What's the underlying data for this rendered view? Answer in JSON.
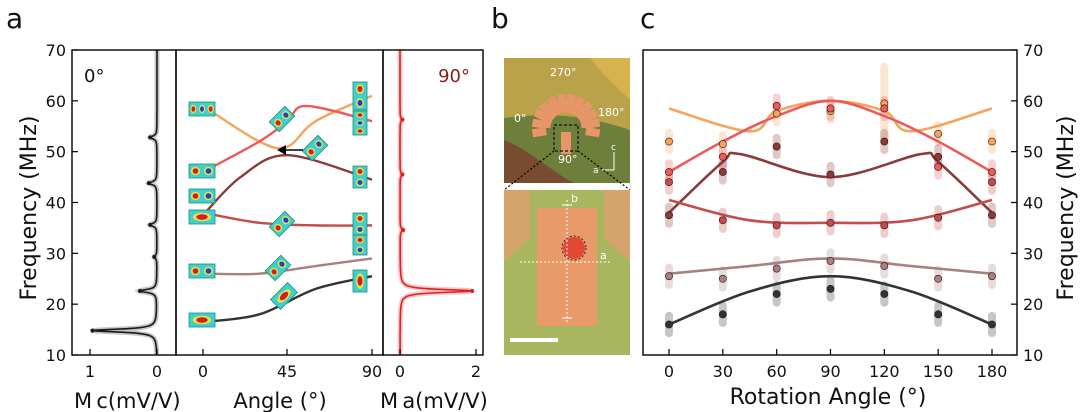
{
  "panel_labels": {
    "a": "a",
    "b": "b",
    "c": "c"
  },
  "panel_a": {
    "ylabel": "Frequency (MHz)",
    "yticks": [
      "10",
      "20",
      "30",
      "40",
      "50",
      "60",
      "70"
    ],
    "left": {
      "label": "0°",
      "xlabel": "M c(mV/V)",
      "xticks": [
        "1",
        "0"
      ],
      "color": "#1a1a1a",
      "peaks": [
        {
          "f": 14.8,
          "a": 0.95
        },
        {
          "f": 22.6,
          "a": 0.25
        },
        {
          "f": 29.3,
          "a": 0.04
        },
        {
          "f": 35.6,
          "a": 0.1
        },
        {
          "f": 43.8,
          "a": 0.12
        },
        {
          "f": 52.8,
          "a": 0.1
        }
      ]
    },
    "middle": {
      "xlabel": "Angle (°)",
      "xticks": [
        "0",
        "45",
        "90"
      ]
    },
    "right": {
      "label": "90°",
      "xlabel": "M a(mV/V)",
      "xticks": [
        "0",
        "2"
      ],
      "color": "#e02020",
      "peaks": [
        {
          "f": 22.6,
          "a": 1.9
        },
        {
          "f": 34.6,
          "a": 0.08
        },
        {
          "f": 45.5,
          "a": 0.06
        },
        {
          "f": 56.3,
          "a": 0.06
        }
      ]
    }
  },
  "panel_b": {
    "top_labels": [
      "270°",
      "180°",
      "0°",
      "90°"
    ],
    "axis_labels": {
      "c": "c",
      "a": "a"
    },
    "bottom_labels": {
      "b": "b",
      "a": "a"
    },
    "colors": {
      "gold": "#d2b15a",
      "olive": "#8a9a50",
      "orange": "#e8a070",
      "green": "#a8b860"
    }
  },
  "chart_data": [
    {
      "type": "line",
      "title": "",
      "xlabel": "Angle (°)",
      "ylabel": "Frequency (MHz)",
      "xlim": [
        -15,
        95
      ],
      "ylim": [
        10,
        70
      ],
      "x": [
        0,
        45,
        90
      ],
      "series": [
        {
          "color": "#f4a45c",
          "points": [
            [
              0,
              59
            ],
            [
              30,
              52
            ],
            [
              45,
              51
            ],
            [
              60,
              56
            ],
            [
              90,
              61
            ]
          ]
        },
        {
          "color": "#ee5a5a",
          "points": [
            [
              0,
              46
            ],
            [
              30,
              52
            ],
            [
              45,
              56
            ],
            [
              55,
              59
            ],
            [
              90,
              56
            ]
          ]
        },
        {
          "color": "#8b3a3a",
          "points": [
            [
              0,
              37.5
            ],
            [
              20,
              45
            ],
            [
              45,
              49.3
            ],
            [
              90,
              44.5
            ]
          ]
        },
        {
          "color": "#c44c4c",
          "points": [
            [
              0,
              38
            ],
            [
              30,
              36
            ],
            [
              60,
              35.5
            ],
            [
              90,
              35.5
            ]
          ]
        },
        {
          "color": "#a88080",
          "points": [
            [
              0,
              26
            ],
            [
              30,
              26
            ],
            [
              60,
              27.5
            ],
            [
              90,
              29
            ]
          ]
        },
        {
          "color": "#333333",
          "points": [
            [
              0,
              16.5
            ],
            [
              30,
              18
            ],
            [
              60,
              23
            ],
            [
              90,
              25.5
            ]
          ]
        }
      ]
    },
    {
      "type": "scatter",
      "title": "",
      "xlabel": "Rotation Angle (°)",
      "ylabel": "Frequency (MHz)",
      "xticks": [
        "0",
        "30",
        "60",
        "90",
        "120",
        "150",
        "180"
      ],
      "yticks": [
        "10",
        "20",
        "30",
        "40",
        "50",
        "60",
        "70"
      ],
      "xlim": [
        -15,
        195
      ],
      "ylim": [
        10,
        70
      ],
      "series": [
        {
          "color": "#f4a45c",
          "curve": [
            [
              0,
              58.5
            ],
            [
              45,
              54
            ],
            [
              60,
              58
            ],
            [
              90,
              60
            ],
            [
              120,
              58
            ],
            [
              135,
              54
            ],
            [
              180,
              58.5
            ]
          ],
          "points": [
            [
              0,
              52
            ],
            [
              30,
              51.5
            ],
            [
              60,
              57.5
            ],
            [
              90,
              58
            ],
            [
              120,
              59.5
            ],
            [
              150,
              53.5
            ],
            [
              180,
              52
            ]
          ]
        },
        {
          "color": "#ee5a5a",
          "curve": [
            [
              0,
              46
            ],
            [
              30,
              52
            ],
            [
              60,
              57
            ],
            [
              90,
              60
            ],
            [
              120,
              57
            ],
            [
              150,
              52
            ],
            [
              180,
              46
            ]
          ],
          "points": [
            [
              0,
              46
            ],
            [
              30,
              49
            ],
            [
              60,
              59
            ],
            [
              90,
              58.5
            ],
            [
              120,
              58.5
            ],
            [
              150,
              47
            ],
            [
              180,
              46
            ]
          ]
        },
        {
          "color": "#8b3a3a",
          "curve": [
            [
              0,
              38
            ],
            [
              30,
              48
            ],
            [
              40,
              49.5
            ],
            [
              90,
              45
            ],
            [
              140,
              49.5
            ],
            [
              150,
              48
            ],
            [
              180,
              38
            ]
          ],
          "points": [
            [
              0,
              37.5
            ],
            [
              30,
              46
            ],
            [
              60,
              51
            ],
            [
              90,
              45.5
            ],
            [
              120,
              52
            ],
            [
              150,
              49
            ],
            [
              180,
              37.5
            ]
          ]
        },
        {
          "color": "#c44c4c",
          "curve": [
            [
              0,
              40.5
            ],
            [
              45,
              36.5
            ],
            [
              90,
              36
            ],
            [
              135,
              36.5
            ],
            [
              180,
              40.5
            ]
          ],
          "points": [
            [
              0,
              44
            ],
            [
              30,
              36.5
            ],
            [
              60,
              35.5
            ],
            [
              90,
              36
            ],
            [
              120,
              35.5
            ],
            [
              150,
              37
            ],
            [
              180,
              44
            ]
          ]
        },
        {
          "color": "#a88080",
          "curve": [
            [
              0,
              26
            ],
            [
              45,
              27.5
            ],
            [
              90,
              29
            ],
            [
              135,
              27.5
            ],
            [
              180,
              26
            ]
          ],
          "points": [
            [
              0,
              25.5
            ],
            [
              30,
              25
            ],
            [
              60,
              27
            ],
            [
              90,
              28.5
            ],
            [
              120,
              27.5
            ],
            [
              150,
              25
            ],
            [
              180,
              25.5
            ]
          ]
        },
        {
          "color": "#333333",
          "curve": [
            [
              0,
              16
            ],
            [
              45,
              22.5
            ],
            [
              90,
              25.5
            ],
            [
              135,
              22.5
            ],
            [
              180,
              16
            ]
          ],
          "points": [
            [
              0,
              16
            ],
            [
              30,
              18
            ],
            [
              60,
              22
            ],
            [
              90,
              23
            ],
            [
              120,
              22
            ],
            [
              150,
              18
            ],
            [
              180,
              16
            ]
          ]
        }
      ]
    }
  ]
}
